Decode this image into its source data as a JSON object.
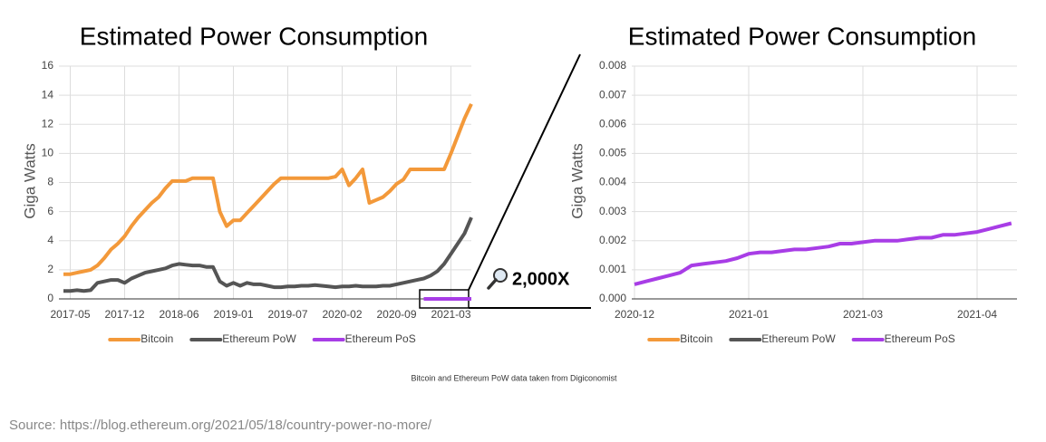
{
  "chart_data": [
    {
      "type": "line",
      "title": "Estimated Power Consumption",
      "ylabel": "Giga Watts",
      "annotation": "2,000X",
      "categories": [
        null,
        "2017-05",
        null,
        null,
        null,
        null,
        null,
        null,
        null,
        "2017-12",
        null,
        null,
        null,
        null,
        null,
        null,
        null,
        "2018-06",
        null,
        null,
        null,
        null,
        null,
        null,
        null,
        "2019-01",
        null,
        null,
        null,
        null,
        null,
        null,
        null,
        "2019-07",
        null,
        null,
        null,
        null,
        null,
        null,
        null,
        "2020-02",
        null,
        null,
        null,
        null,
        null,
        null,
        null,
        "2020-09",
        null,
        null,
        null,
        null,
        null,
        null,
        null,
        "2021-03",
        null,
        null,
        null
      ],
      "series": [
        {
          "name": "Bitcoin",
          "color": "#f3993a",
          "values": [
            1.7,
            1.7,
            1.8,
            1.9,
            2.0,
            2.3,
            2.8,
            3.4,
            3.8,
            4.3,
            5.0,
            5.6,
            6.1,
            6.6,
            7.0,
            7.6,
            8.1,
            8.1,
            8.1,
            8.3,
            8.3,
            8.3,
            8.3,
            6.0,
            5.0,
            5.4,
            5.4,
            5.9,
            6.4,
            6.9,
            7.4,
            7.9,
            8.3,
            8.3,
            8.3,
            8.3,
            8.3,
            8.3,
            8.3,
            8.3,
            8.4,
            8.9,
            7.8,
            8.3,
            8.9,
            6.6,
            6.8,
            7.0,
            7.4,
            7.9,
            8.2,
            8.9,
            8.9,
            8.9,
            8.9,
            8.9,
            8.9,
            10.0,
            11.2,
            12.4,
            13.4
          ]
        },
        {
          "name": "Ethereum PoW",
          "color": "#555555",
          "values": [
            0.55,
            0.55,
            0.6,
            0.55,
            0.6,
            1.1,
            1.2,
            1.3,
            1.3,
            1.1,
            1.4,
            1.6,
            1.8,
            1.9,
            2.0,
            2.1,
            2.3,
            2.4,
            2.35,
            2.3,
            2.3,
            2.2,
            2.2,
            1.2,
            0.9,
            1.1,
            0.9,
            1.1,
            1.0,
            1.0,
            0.9,
            0.8,
            0.8,
            0.85,
            0.85,
            0.9,
            0.9,
            0.95,
            0.9,
            0.85,
            0.8,
            0.85,
            0.85,
            0.9,
            0.85,
            0.85,
            0.85,
            0.9,
            0.9,
            1.0,
            1.1,
            1.2,
            1.3,
            1.4,
            1.6,
            1.9,
            2.4,
            3.1,
            3.8,
            4.5,
            5.6
          ]
        },
        {
          "name": "Ethereum PoS",
          "color": "#a83de6",
          "values": [
            null,
            null,
            null,
            null,
            null,
            null,
            null,
            null,
            null,
            null,
            null,
            null,
            null,
            null,
            null,
            null,
            null,
            null,
            null,
            null,
            null,
            null,
            null,
            null,
            null,
            null,
            null,
            null,
            null,
            null,
            null,
            null,
            null,
            null,
            null,
            null,
            null,
            null,
            null,
            null,
            null,
            null,
            null,
            null,
            null,
            null,
            null,
            null,
            null,
            null,
            null,
            null,
            null,
            0.0005,
            0.0009,
            0.0013,
            0.0016,
            0.0019,
            0.0021,
            0.0023,
            0.0026
          ]
        }
      ],
      "ylim": [
        0,
        16
      ],
      "yticks": [
        0,
        2,
        4,
        6,
        8,
        10,
        12,
        14,
        16
      ],
      "grid": true
    },
    {
      "type": "line",
      "title": "Estimated Power Consumption",
      "ylabel": "Giga Watts",
      "categories": [
        "2020-12",
        null,
        null,
        null,
        null,
        null,
        null,
        null,
        null,
        null,
        "2021-01",
        null,
        null,
        null,
        null,
        null,
        null,
        null,
        null,
        null,
        "2021-03",
        null,
        null,
        null,
        null,
        null,
        null,
        null,
        null,
        null,
        "2021-04",
        null,
        null,
        null
      ],
      "series": [
        {
          "name": "Bitcoin",
          "color": "#f3993a",
          "values": [
            null,
            null,
            null,
            null,
            null,
            null,
            null,
            null,
            null,
            null,
            null,
            null,
            null,
            null,
            null,
            null,
            null,
            null,
            null,
            null,
            null,
            null,
            null,
            null,
            null,
            null,
            null,
            null,
            null,
            null,
            null,
            null,
            null,
            null
          ]
        },
        {
          "name": "Ethereum PoW",
          "color": "#555555",
          "values": [
            null,
            null,
            null,
            null,
            null,
            null,
            null,
            null,
            null,
            null,
            null,
            null,
            null,
            null,
            null,
            null,
            null,
            null,
            null,
            null,
            null,
            null,
            null,
            null,
            null,
            null,
            null,
            null,
            null,
            null,
            null,
            null,
            null,
            null
          ]
        },
        {
          "name": "Ethereum PoS",
          "color": "#a83de6",
          "values": [
            0.0005,
            0.0006,
            0.0007,
            0.0008,
            0.0009,
            0.00115,
            0.0012,
            0.00125,
            0.0013,
            0.0014,
            0.00155,
            0.0016,
            0.0016,
            0.00165,
            0.0017,
            0.0017,
            0.00175,
            0.0018,
            0.0019,
            0.0019,
            0.00195,
            0.002,
            0.002,
            0.002,
            0.00205,
            0.0021,
            0.0021,
            0.0022,
            0.0022,
            0.00225,
            0.0023,
            0.0024,
            0.0025,
            0.0026
          ]
        }
      ],
      "ylim": [
        0,
        0.008
      ],
      "yticks": [
        {
          "value": 0,
          "label": "0.000"
        },
        {
          "value": 0.001,
          "label": "0.001"
        },
        {
          "value": 0.002,
          "label": "0.002"
        },
        {
          "value": 0.003,
          "label": "0.003"
        },
        {
          "value": 0.004,
          "label": "0.004"
        },
        {
          "value": 0.005,
          "label": "0.005"
        },
        {
          "value": 0.006,
          "label": "0.006"
        },
        {
          "value": 0.007,
          "label": "0.007"
        },
        {
          "value": 0.008,
          "label": "0.008"
        }
      ],
      "grid": true
    }
  ],
  "footnote": "Bitcoin and Ethereum PoW data taken from Digiconomist",
  "source": "Source: https://blog.ethereum.org/2021/05/18/country-power-no-more/"
}
